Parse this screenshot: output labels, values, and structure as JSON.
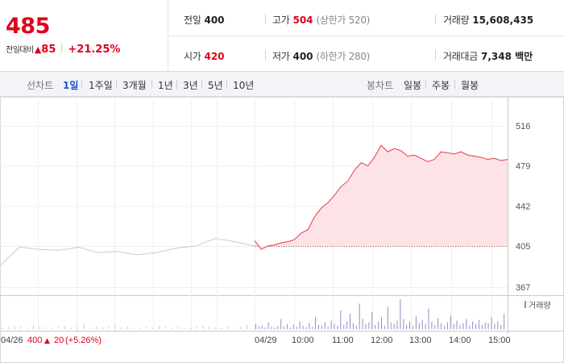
{
  "summary": {
    "price": "485",
    "change_label": "전일대비",
    "change_icon": "up-triangle",
    "change_amount": "85",
    "change_rate": "+21.25%",
    "up_color": "#e0001a"
  },
  "stats": {
    "prev_close_label": "전일",
    "prev_close": "400",
    "high_label": "고가",
    "high": "504",
    "upper_limit": "(상한가 520)",
    "volume_label": "거래량",
    "volume": "15,608,435",
    "open_label": "시가",
    "open": "420",
    "low_label": "저가",
    "low": "400",
    "lower_limit": "(하한가 280)",
    "value_label": "거래대금",
    "value": "7,348 백만"
  },
  "line_tabs": {
    "label": "선차트",
    "items": [
      "1일",
      "1주일",
      "3개월",
      "1년",
      "3년",
      "5년",
      "10년"
    ],
    "selected": "1일"
  },
  "candle_tabs": {
    "label": "봉차트",
    "items": [
      "일봉",
      "주봉",
      "월봉"
    ]
  },
  "chart_data": {
    "type": "line",
    "ylim": [
      367,
      516
    ],
    "yticks": [
      516,
      479,
      442,
      405,
      367
    ],
    "reference_price": 405,
    "x_tick_labels": [
      "04/26",
      "04/29",
      "10:00",
      "11:00",
      "12:00",
      "13:00",
      "14:00",
      "15:00"
    ],
    "volume_legend": "거래량",
    "prev_day_footer": {
      "date": "04/26",
      "close": "400",
      "change": "20",
      "rate": "(+5.26%)"
    },
    "series": [
      {
        "segment": "previous_day",
        "color": "#cccccc",
        "x": [
          "04/26 09:00",
          "04/26 09:30",
          "04/26 10:00",
          "04/26 10:30",
          "04/26 11:00",
          "04/26 11:30",
          "04/26 12:00",
          "04/26 12:30",
          "04/26 13:00",
          "04/26 13:30",
          "04/26 14:00",
          "04/26 14:30",
          "04/26 15:00",
          "04/26 15:30"
        ],
        "values": [
          387,
          404,
          402,
          401,
          404,
          399,
          400,
          397,
          399,
          403,
          405,
          412,
          409,
          405
        ]
      },
      {
        "segment": "today",
        "color": "#e8394a",
        "fill": "#fde3e5",
        "x": [
          "09:00",
          "09:10",
          "09:20",
          "09:30",
          "09:40",
          "09:50",
          "10:00",
          "10:10",
          "10:20",
          "10:30",
          "10:40",
          "10:50",
          "11:00",
          "11:10",
          "11:20",
          "11:30",
          "11:40",
          "11:50",
          "12:00",
          "12:10",
          "12:20",
          "12:30",
          "12:40",
          "12:50",
          "13:00",
          "13:10",
          "13:20",
          "13:30",
          "13:40",
          "13:50",
          "14:00",
          "14:10",
          "14:20",
          "14:30",
          "14:40",
          "14:50",
          "15:00",
          "15:10",
          "15:20"
        ],
        "values": [
          410,
          402,
          405,
          406,
          408,
          409,
          411,
          417,
          420,
          432,
          440,
          445,
          452,
          460,
          465,
          475,
          482,
          479,
          487,
          498,
          492,
          495,
          493,
          488,
          489,
          486,
          483,
          485,
          492,
          491,
          490,
          492,
          489,
          488,
          487,
          485,
          486,
          484,
          485
        ]
      }
    ],
    "volume_series": {
      "color": "#9d87c2",
      "prev_color": "#cccccc",
      "prev_values": [
        2,
        3,
        4,
        3,
        2,
        5,
        3,
        2,
        2,
        3,
        4,
        2,
        3,
        6,
        2,
        3,
        2,
        3,
        4,
        2,
        3,
        2,
        2,
        3,
        2,
        4,
        3,
        2,
        3,
        2,
        2,
        3,
        4,
        3,
        2,
        2,
        3,
        2,
        3,
        5
      ],
      "values": [
        6,
        3,
        4,
        2,
        8,
        3,
        2,
        4,
        12,
        3,
        6,
        2,
        5,
        3,
        9,
        4,
        2,
        7,
        3,
        14,
        5,
        4,
        8,
        3,
        10,
        6,
        4,
        22,
        5,
        9,
        18,
        7,
        4,
        30,
        12,
        6,
        8,
        20,
        5,
        9,
        14,
        4,
        26,
        8,
        6,
        10,
        35,
        12,
        5,
        9,
        4,
        15,
        7,
        11,
        6,
        24,
        9,
        5,
        13,
        7,
        4,
        8,
        16,
        6,
        10,
        5,
        7,
        12,
        4,
        9,
        6,
        11,
        5,
        8,
        7,
        14,
        6,
        9,
        5,
        18
      ]
    }
  }
}
